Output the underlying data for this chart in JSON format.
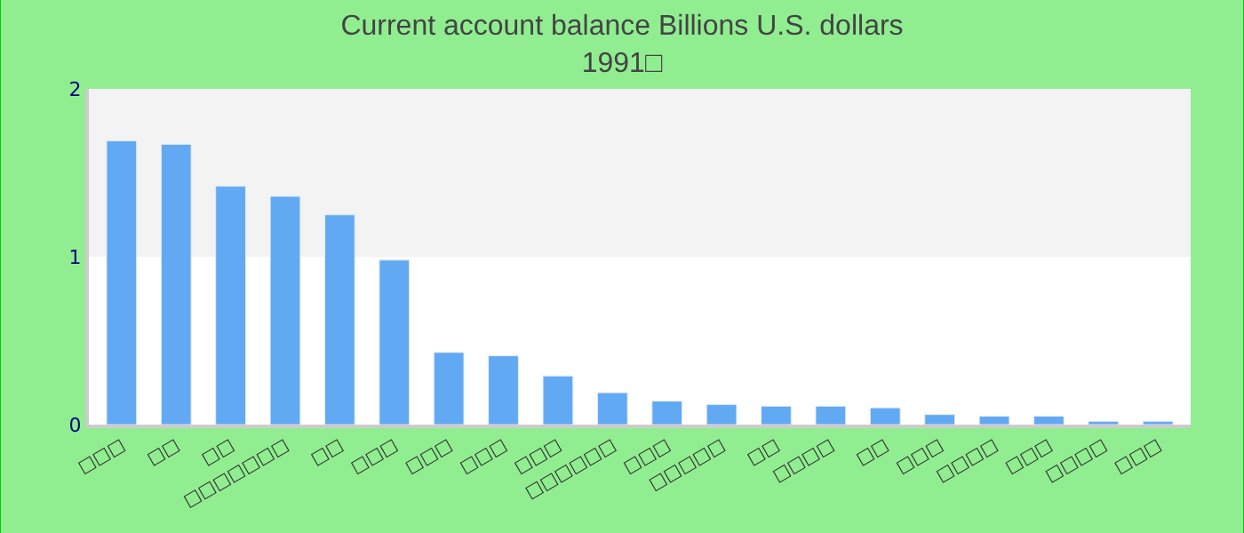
{
  "chart_data": {
    "type": "bar",
    "title": "Current account balance Billions U.S. dollars",
    "subtitle": "1991□",
    "categories": [
      "□□□",
      "□□",
      "□□",
      "□□□□□□□",
      "□□",
      "□□□",
      "□□□",
      "□□□",
      "□□□",
      "□□□□□□",
      "□□□",
      "□□□□□",
      "□□",
      "□□□□",
      "□□",
      "□□□",
      "□□□□",
      "□□□",
      "□□□□",
      "□□□"
    ],
    "values": [
      1.69,
      1.67,
      1.42,
      1.36,
      1.25,
      0.98,
      0.43,
      0.41,
      0.29,
      0.19,
      0.14,
      0.12,
      0.11,
      0.11,
      0.1,
      0.06,
      0.05,
      0.05,
      0.02,
      0.02
    ],
    "color": "#61a9f3",
    "ylim": [
      0,
      2
    ],
    "yticks": [
      0,
      1,
      2
    ],
    "grid": false,
    "bands": [
      {
        "axis": "y",
        "from": 1,
        "to": 2,
        "color": "#f3f3f3"
      }
    ]
  }
}
